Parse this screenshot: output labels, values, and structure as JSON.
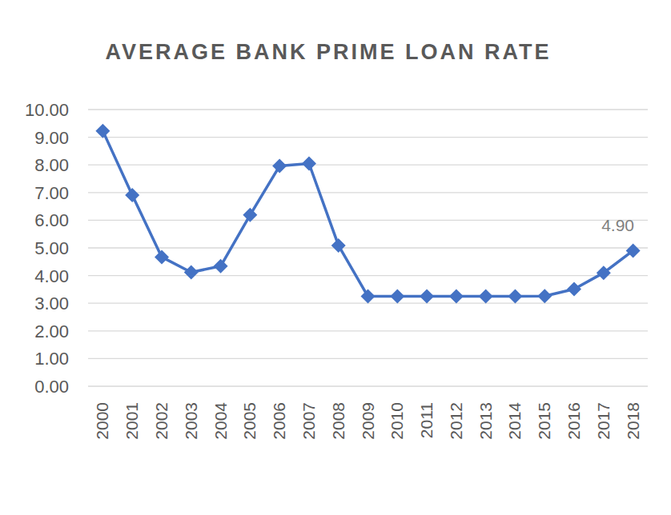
{
  "chart_data": {
    "type": "line",
    "title": "AVERAGE BANK PRIME LOAN RATE",
    "categories": [
      "2000",
      "2001",
      "2002",
      "2003",
      "2004",
      "2005",
      "2006",
      "2007",
      "2008",
      "2009",
      "2010",
      "2011",
      "2012",
      "2013",
      "2014",
      "2015",
      "2016",
      "2017",
      "2018"
    ],
    "values": [
      9.23,
      6.91,
      4.67,
      4.12,
      4.34,
      6.19,
      7.96,
      8.05,
      5.09,
      3.25,
      3.25,
      3.25,
      3.25,
      3.25,
      3.25,
      3.26,
      3.51,
      4.1,
      4.9
    ],
    "value_labels": [
      null,
      null,
      null,
      null,
      null,
      null,
      null,
      null,
      null,
      null,
      null,
      null,
      null,
      null,
      null,
      null,
      null,
      null,
      "4.90"
    ],
    "color": "#4472c4",
    "marker": "diamond",
    "ylim": [
      0,
      10
    ],
    "yticks": [
      {
        "value": 0,
        "label": "0.00"
      },
      {
        "value": 1,
        "label": "1.00"
      },
      {
        "value": 2,
        "label": "2.00"
      },
      {
        "value": 3,
        "label": "3.00"
      },
      {
        "value": 4,
        "label": "4.00"
      },
      {
        "value": 5,
        "label": "5.00"
      },
      {
        "value": 6,
        "label": "6.00"
      },
      {
        "value": 7,
        "label": "7.00"
      },
      {
        "value": 8,
        "label": "8.00"
      },
      {
        "value": 9,
        "label": "9.00"
      },
      {
        "value": 10,
        "label": "10.00"
      }
    ],
    "grid": true
  }
}
